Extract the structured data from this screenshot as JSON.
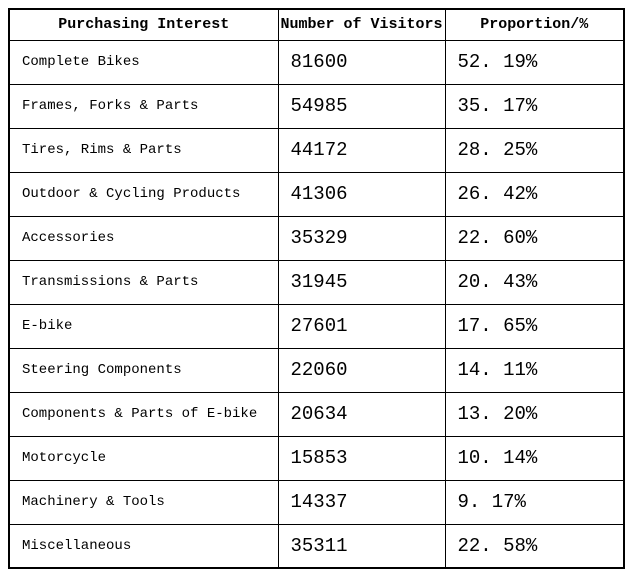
{
  "colors": {
    "background": "#ffffff",
    "border": "#000000",
    "text": "#000000"
  },
  "table": {
    "headers": {
      "interest": "Purchasing Interest",
      "visitors": "Number of Visitors",
      "proportion": "Proportion/%"
    },
    "rows": [
      {
        "interest": "Complete Bikes",
        "visitors": "81600",
        "proportion": "52. 19%"
      },
      {
        "interest": "Frames, Forks & Parts",
        "visitors": "54985",
        "proportion": "35. 17%"
      },
      {
        "interest": "Tires, Rims & Parts",
        "visitors": "44172",
        "proportion": "28. 25%"
      },
      {
        "interest": "Outdoor & Cycling Products",
        "visitors": "41306",
        "proportion": "26. 42%"
      },
      {
        "interest": "Accessories",
        "visitors": "35329",
        "proportion": "22. 60%"
      },
      {
        "interest": "Transmissions & Parts",
        "visitors": "31945",
        "proportion": "20. 43%"
      },
      {
        "interest": "E-bike",
        "visitors": "27601",
        "proportion": "17. 65%"
      },
      {
        "interest": "Steering Components",
        "visitors": "22060",
        "proportion": "14. 11%"
      },
      {
        "interest": "Components & Parts of E-bike",
        "visitors": "20634",
        "proportion": "13. 20%"
      },
      {
        "interest": "Motorcycle",
        "visitors": "15853",
        "proportion": "10. 14%"
      },
      {
        "interest": "Machinery & Tools",
        "visitors": "14337",
        "proportion": "9. 17%"
      },
      {
        "interest": "Miscellaneous",
        "visitors": "35311",
        "proportion": "22. 58%"
      }
    ]
  },
  "chart_data": {
    "type": "table",
    "title": "",
    "columns": [
      "Purchasing Interest",
      "Number of Visitors",
      "Proportion/%"
    ],
    "rows": [
      [
        "Complete Bikes",
        81600,
        52.19
      ],
      [
        "Frames, Forks & Parts",
        54985,
        35.17
      ],
      [
        "Tires, Rims & Parts",
        44172,
        28.25
      ],
      [
        "Outdoor & Cycling Products",
        41306,
        26.42
      ],
      [
        "Accessories",
        35329,
        22.6
      ],
      [
        "Transmissions & Parts",
        31945,
        20.43
      ],
      [
        "E-bike",
        27601,
        17.65
      ],
      [
        "Steering Components",
        22060,
        14.11
      ],
      [
        "Components & Parts of E-bike",
        20634,
        13.2
      ],
      [
        "Motorcycle",
        15853,
        10.14
      ],
      [
        "Machinery & Tools",
        14337,
        9.17
      ],
      [
        "Miscellaneous",
        35311,
        22.58
      ]
    ]
  }
}
